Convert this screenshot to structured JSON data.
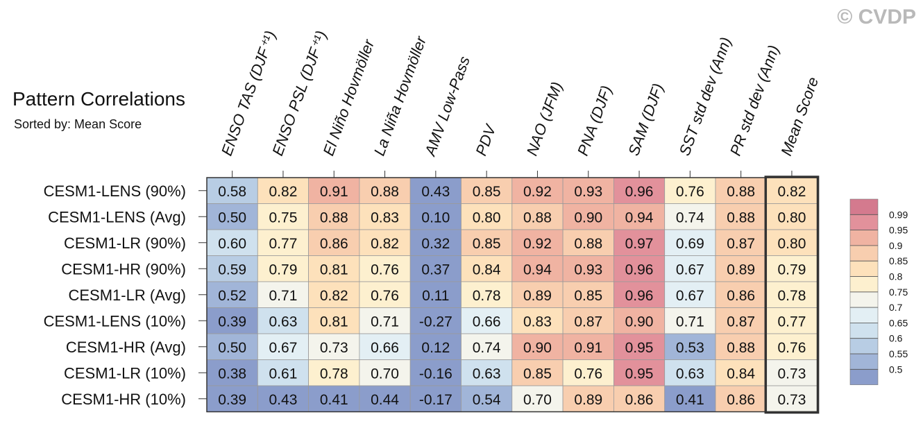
{
  "watermark": "© CVDP",
  "chart_data": {
    "type": "heatmap",
    "title": "Pattern Correlations",
    "subtitle": "Sorted by: Mean Score",
    "columns": [
      "ENSO TAS (DJF⁺¹)",
      "ENSO PSL (DJF⁺¹)",
      "El Niño Hovmöller",
      "La Niña Hovmöller",
      "AMV Low-Pass",
      "PDV",
      "NAO (JFM)",
      "PNA (DJF)",
      "SAM (DJF)",
      "SST std dev (Ann)",
      "PR std dev (Ann)",
      "Mean Score"
    ],
    "rows": [
      {
        "label": "CESM1-LENS (90%)",
        "values": [
          "0.58",
          "0.82",
          "0.91",
          "0.88",
          "0.43",
          "0.85",
          "0.92",
          "0.93",
          "0.96",
          "0.76",
          "0.88",
          "0.82"
        ]
      },
      {
        "label": "CESM1-LENS (Avg)",
        "values": [
          "0.50",
          "0.75",
          "0.88",
          "0.83",
          "0.10",
          "0.80",
          "0.88",
          "0.90",
          "0.94",
          "0.74",
          "0.88",
          "0.80"
        ]
      },
      {
        "label": "CESM1-LR (90%)",
        "values": [
          "0.60",
          "0.77",
          "0.86",
          "0.82",
          "0.32",
          "0.85",
          "0.92",
          "0.88",
          "0.97",
          "0.69",
          "0.87",
          "0.80"
        ]
      },
      {
        "label": "CESM1-HR (90%)",
        "values": [
          "0.59",
          "0.79",
          "0.81",
          "0.76",
          "0.37",
          "0.84",
          "0.94",
          "0.93",
          "0.96",
          "0.67",
          "0.89",
          "0.79"
        ]
      },
      {
        "label": "CESM1-LR (Avg)",
        "values": [
          "0.52",
          "0.71",
          "0.82",
          "0.76",
          "0.11",
          "0.78",
          "0.89",
          "0.85",
          "0.96",
          "0.67",
          "0.86",
          "0.78"
        ]
      },
      {
        "label": "CESM1-LENS (10%)",
        "values": [
          "0.39",
          "0.63",
          "0.81",
          "0.71",
          "-0.27",
          "0.66",
          "0.83",
          "0.87",
          "0.90",
          "0.71",
          "0.87",
          "0.77"
        ]
      },
      {
        "label": "CESM1-HR (Avg)",
        "values": [
          "0.50",
          "0.67",
          "0.73",
          "0.66",
          "0.12",
          "0.74",
          "0.90",
          "0.91",
          "0.95",
          "0.53",
          "0.88",
          "0.76"
        ]
      },
      {
        "label": "CESM1-LR (10%)",
        "values": [
          "0.38",
          "0.61",
          "0.78",
          "0.70",
          "-0.16",
          "0.63",
          "0.85",
          "0.76",
          "0.95",
          "0.63",
          "0.84",
          "0.73"
        ]
      },
      {
        "label": "CESM1-HR (10%)",
        "values": [
          "0.39",
          "0.43",
          "0.41",
          "0.44",
          "-0.17",
          "0.54",
          "0.70",
          "0.89",
          "0.86",
          "0.41",
          "0.86",
          "0.73"
        ]
      }
    ],
    "colorbar": {
      "labels": [
        "0.99",
        "0.95",
        "0.9",
        "0.85",
        "0.8",
        "0.75",
        "0.7",
        "0.65",
        "0.6",
        "0.55",
        "0.5"
      ],
      "levels": [
        0.5,
        0.55,
        0.6,
        0.65,
        0.7,
        0.75,
        0.8,
        0.85,
        0.9,
        0.95,
        0.99
      ],
      "colors": [
        "#8b9dcb",
        "#a1b5d8",
        "#b8cde4",
        "#cfe1ee",
        "#e3eff4",
        "#f4f4ec",
        "#fdf0cf",
        "#fde1bb",
        "#f8ceaf",
        "#f0b3a2",
        "#e2919b",
        "#d47a8e"
      ]
    },
    "highlighted_column": "Mean Score"
  }
}
